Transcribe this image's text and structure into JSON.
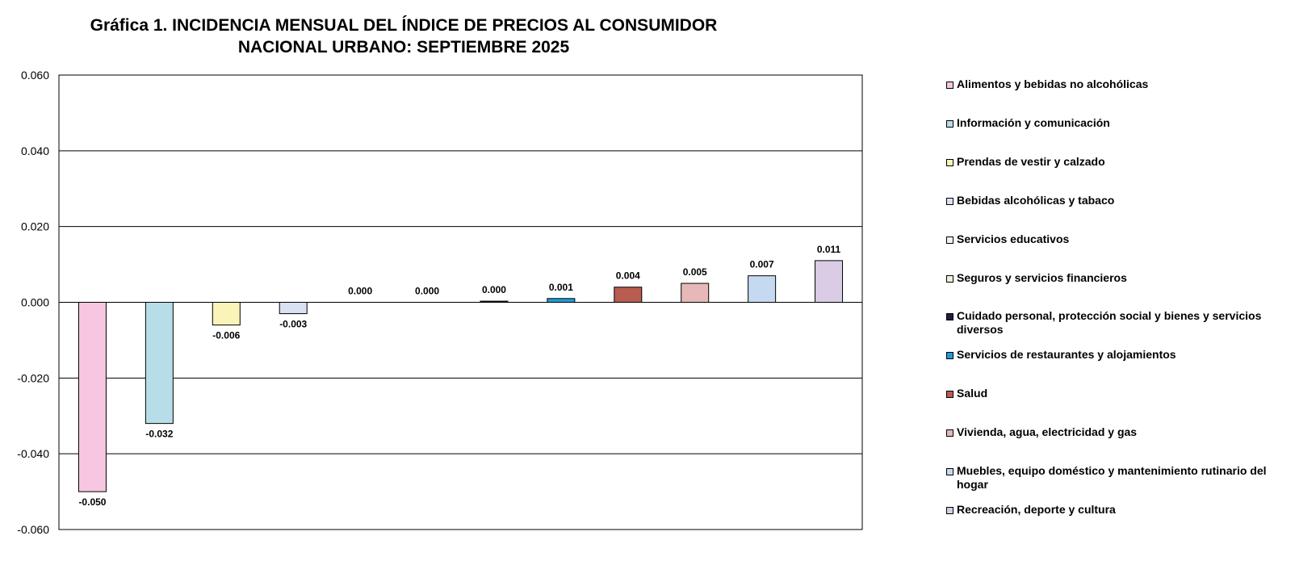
{
  "title_line1": "Gráfica 1.  INCIDENCIA MENSUAL  DEL ÍNDICE DE PRECIOS AL CONSUMIDOR",
  "title_line2": "NACIONAL URBANO:  SEPTIEMBRE 2025",
  "chart_data": {
    "type": "bar",
    "title": "Gráfica 1.  INCIDENCIA MENSUAL  DEL ÍNDICE DE PRECIOS AL CONSUMIDOR NACIONAL URBANO:  SEPTIEMBRE 2025",
    "xlabel": "",
    "ylabel": "",
    "ylim": [
      -0.06,
      0.06
    ],
    "yticks": [
      "0.060",
      "0.040",
      "0.020",
      "0.000",
      "-0.020",
      "-0.040",
      "-0.060"
    ],
    "grid": true,
    "legend_position": "right",
    "categories": [
      "Alimentos y bebidas no alcohólicas",
      "Información y comunicación",
      "Prendas de vestir y calzado",
      "Bebidas alcohólicas y tabaco",
      "Servicios educativos",
      "Seguros y servicios financieros",
      "Cuidado personal, protección social y bienes y servicios diversos",
      "Servicios de restaurantes y alojamientos",
      "Salud",
      "Vivienda, agua, electricidad y gas",
      "Muebles, equipo doméstico y mantenimiento rutinario del hogar",
      "Recreación, deporte y cultura"
    ],
    "values": [
      -0.05,
      -0.032,
      -0.006,
      -0.003,
      0.0,
      0.0,
      0.0003,
      0.001,
      0.004,
      0.005,
      0.007,
      0.011
    ],
    "labels": [
      "-0.050",
      "-0.032",
      "-0.006",
      "-0.003",
      "0.000",
      "0.000",
      "0.000",
      "0.001",
      "0.004",
      "0.005",
      "0.007",
      "0.011"
    ],
    "colors": [
      "#F7C6E0",
      "#B7DDE8",
      "#FAF4B9",
      "#D9E1F2",
      "#F2F2F2",
      "#EBF1DE",
      "#1F1F3F",
      "#1F9BD9",
      "#B85C4F",
      "#E6B8B7",
      "#C5D9F1",
      "#D9CCE4"
    ]
  },
  "legend": {
    "items": [
      "Alimentos y bebidas no alcohólicas",
      "Información y comunicación",
      "Prendas de vestir y calzado",
      "Bebidas alcohólicas y tabaco",
      "Servicios educativos",
      "Seguros y servicios financieros",
      "Cuidado personal, protección social y bienes y servicios diversos",
      "Servicios de restaurantes y alojamientos",
      "Salud",
      "Vivienda, agua, electricidad y gas",
      "Muebles, equipo doméstico y mantenimiento rutinario del hogar",
      "Recreación, deporte y cultura"
    ]
  }
}
